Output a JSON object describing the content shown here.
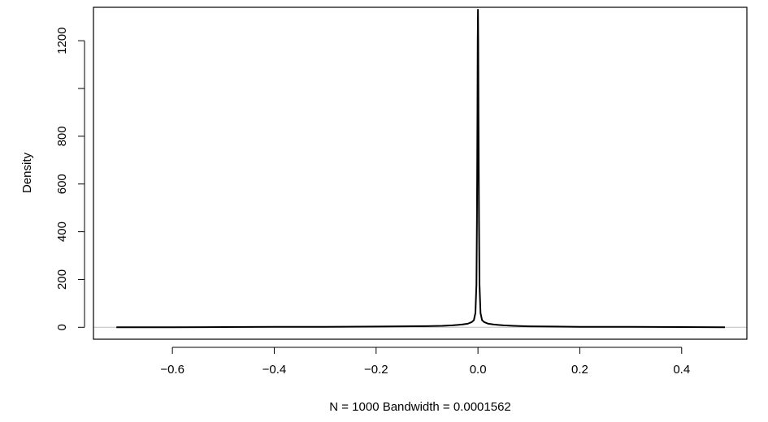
{
  "chart_data": {
    "type": "line",
    "title": "",
    "xlabel": "N = 1000   Bandwidth = 0.0001562",
    "ylabel": "Density",
    "xlim": [
      -0.755,
      0.528
    ],
    "ylim": [
      -50,
      1340
    ],
    "x_ticks": [
      -0.6,
      -0.4,
      -0.2,
      0.0,
      0.2,
      0.4
    ],
    "x_tick_labels": [
      "−0.6",
      "−0.4",
      "−0.2",
      "0.0",
      "0.2",
      "0.4"
    ],
    "y_ticks": [
      0,
      200,
      400,
      600,
      800,
      1000,
      1200
    ],
    "y_tick_labels": [
      "0",
      "200",
      "400",
      "600",
      "800",
      "",
      "1200"
    ],
    "grid": false,
    "zero_line": true,
    "series": [
      {
        "x": [
          -0.71,
          -0.6,
          -0.5,
          -0.4,
          -0.3,
          -0.2,
          -0.15,
          -0.1,
          -0.07,
          -0.05,
          -0.04,
          -0.03,
          -0.02,
          -0.012,
          -0.008,
          -0.005,
          -0.003,
          -0.002,
          -0.001,
          -0.0005,
          0.0,
          0.0005,
          0.001,
          0.002,
          0.003,
          0.005,
          0.008,
          0.012,
          0.02,
          0.03,
          0.04,
          0.05,
          0.07,
          0.1,
          0.15,
          0.2,
          0.3,
          0.4,
          0.485
        ],
        "y": [
          0,
          0,
          1,
          2,
          2,
          3,
          4,
          5,
          6,
          8,
          10,
          12,
          15,
          22,
          30,
          60,
          180,
          450,
          900,
          1200,
          1330,
          1200,
          900,
          450,
          180,
          60,
          30,
          22,
          15,
          12,
          10,
          8,
          6,
          4,
          3,
          2,
          2,
          1,
          0
        ]
      }
    ]
  }
}
